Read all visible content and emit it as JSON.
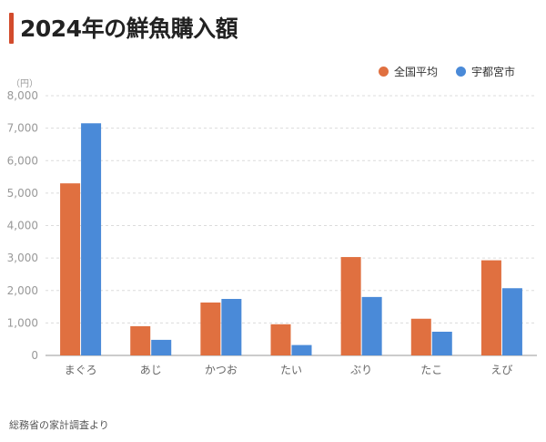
{
  "title": "2024年の鮮魚購入額",
  "unit_label": "（円）",
  "source": "総務省の家計調査より",
  "colors": {
    "national": "#e07040",
    "utsunomiya": "#4a8ad8",
    "title_accent": "#d24b2c"
  },
  "chart_data": {
    "type": "bar",
    "title": "2024年の鮮魚購入額",
    "ylabel": "（円）",
    "categories": [
      "まぐろ",
      "あじ",
      "かつお",
      "たい",
      "ぶり",
      "たこ",
      "えび"
    ],
    "series": [
      {
        "name": "全国平均",
        "values": [
          5300,
          900,
          1630,
          960,
          3030,
          1130,
          2930
        ]
      },
      {
        "name": "宇都宮市",
        "values": [
          7150,
          480,
          1740,
          320,
          1800,
          730,
          2070
        ]
      }
    ],
    "ylim": [
      0,
      8000
    ],
    "yticks": [
      "0",
      "1,000",
      "2,000",
      "3,000",
      "4,000",
      "5,000",
      "6,000",
      "7,000",
      "8,000"
    ],
    "grid": true,
    "legend": "top-right"
  }
}
